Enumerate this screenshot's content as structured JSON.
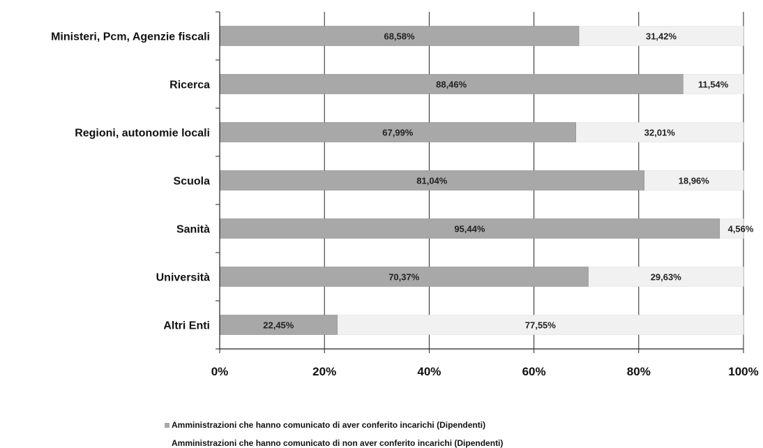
{
  "chart_data": {
    "type": "bar",
    "orientation": "horizontal",
    "stacked": true,
    "percent_stacked": true,
    "categories": [
      "Ministeri, Pcm, Agenzie fiscali",
      "Ricerca",
      "Regioni, autonomie locali",
      "Scuola",
      "Sanità",
      "Università",
      "Altri Enti"
    ],
    "series": [
      {
        "name": "Amministrazioni che hanno comunicato di aver conferito incarichi (Dipendenti)",
        "values": [
          68.58,
          88.46,
          67.99,
          81.04,
          95.44,
          70.37,
          22.45
        ],
        "labels": [
          "68,58%",
          "88,46%",
          "67,99%",
          "81,04%",
          "95,44%",
          "70,37%",
          "22,45%"
        ],
        "color": "#a8a8a8"
      },
      {
        "name": "Amministrazioni che hanno comunicato di non aver conferito incarichi (Dipendenti)",
        "values": [
          31.42,
          11.54,
          32.01,
          18.96,
          4.56,
          29.63,
          77.55
        ],
        "labels": [
          "31,42%",
          "11,54%",
          "32,01%",
          "18,96%",
          "4,56%",
          "29,63%",
          "77,55%"
        ],
        "color": "#f1f1f1"
      }
    ],
    "xlim": [
      0,
      100
    ],
    "xticks": [
      "0%",
      "20%",
      "40%",
      "60%",
      "80%",
      "100%"
    ],
    "grid": true,
    "legend_position": "bottom"
  }
}
